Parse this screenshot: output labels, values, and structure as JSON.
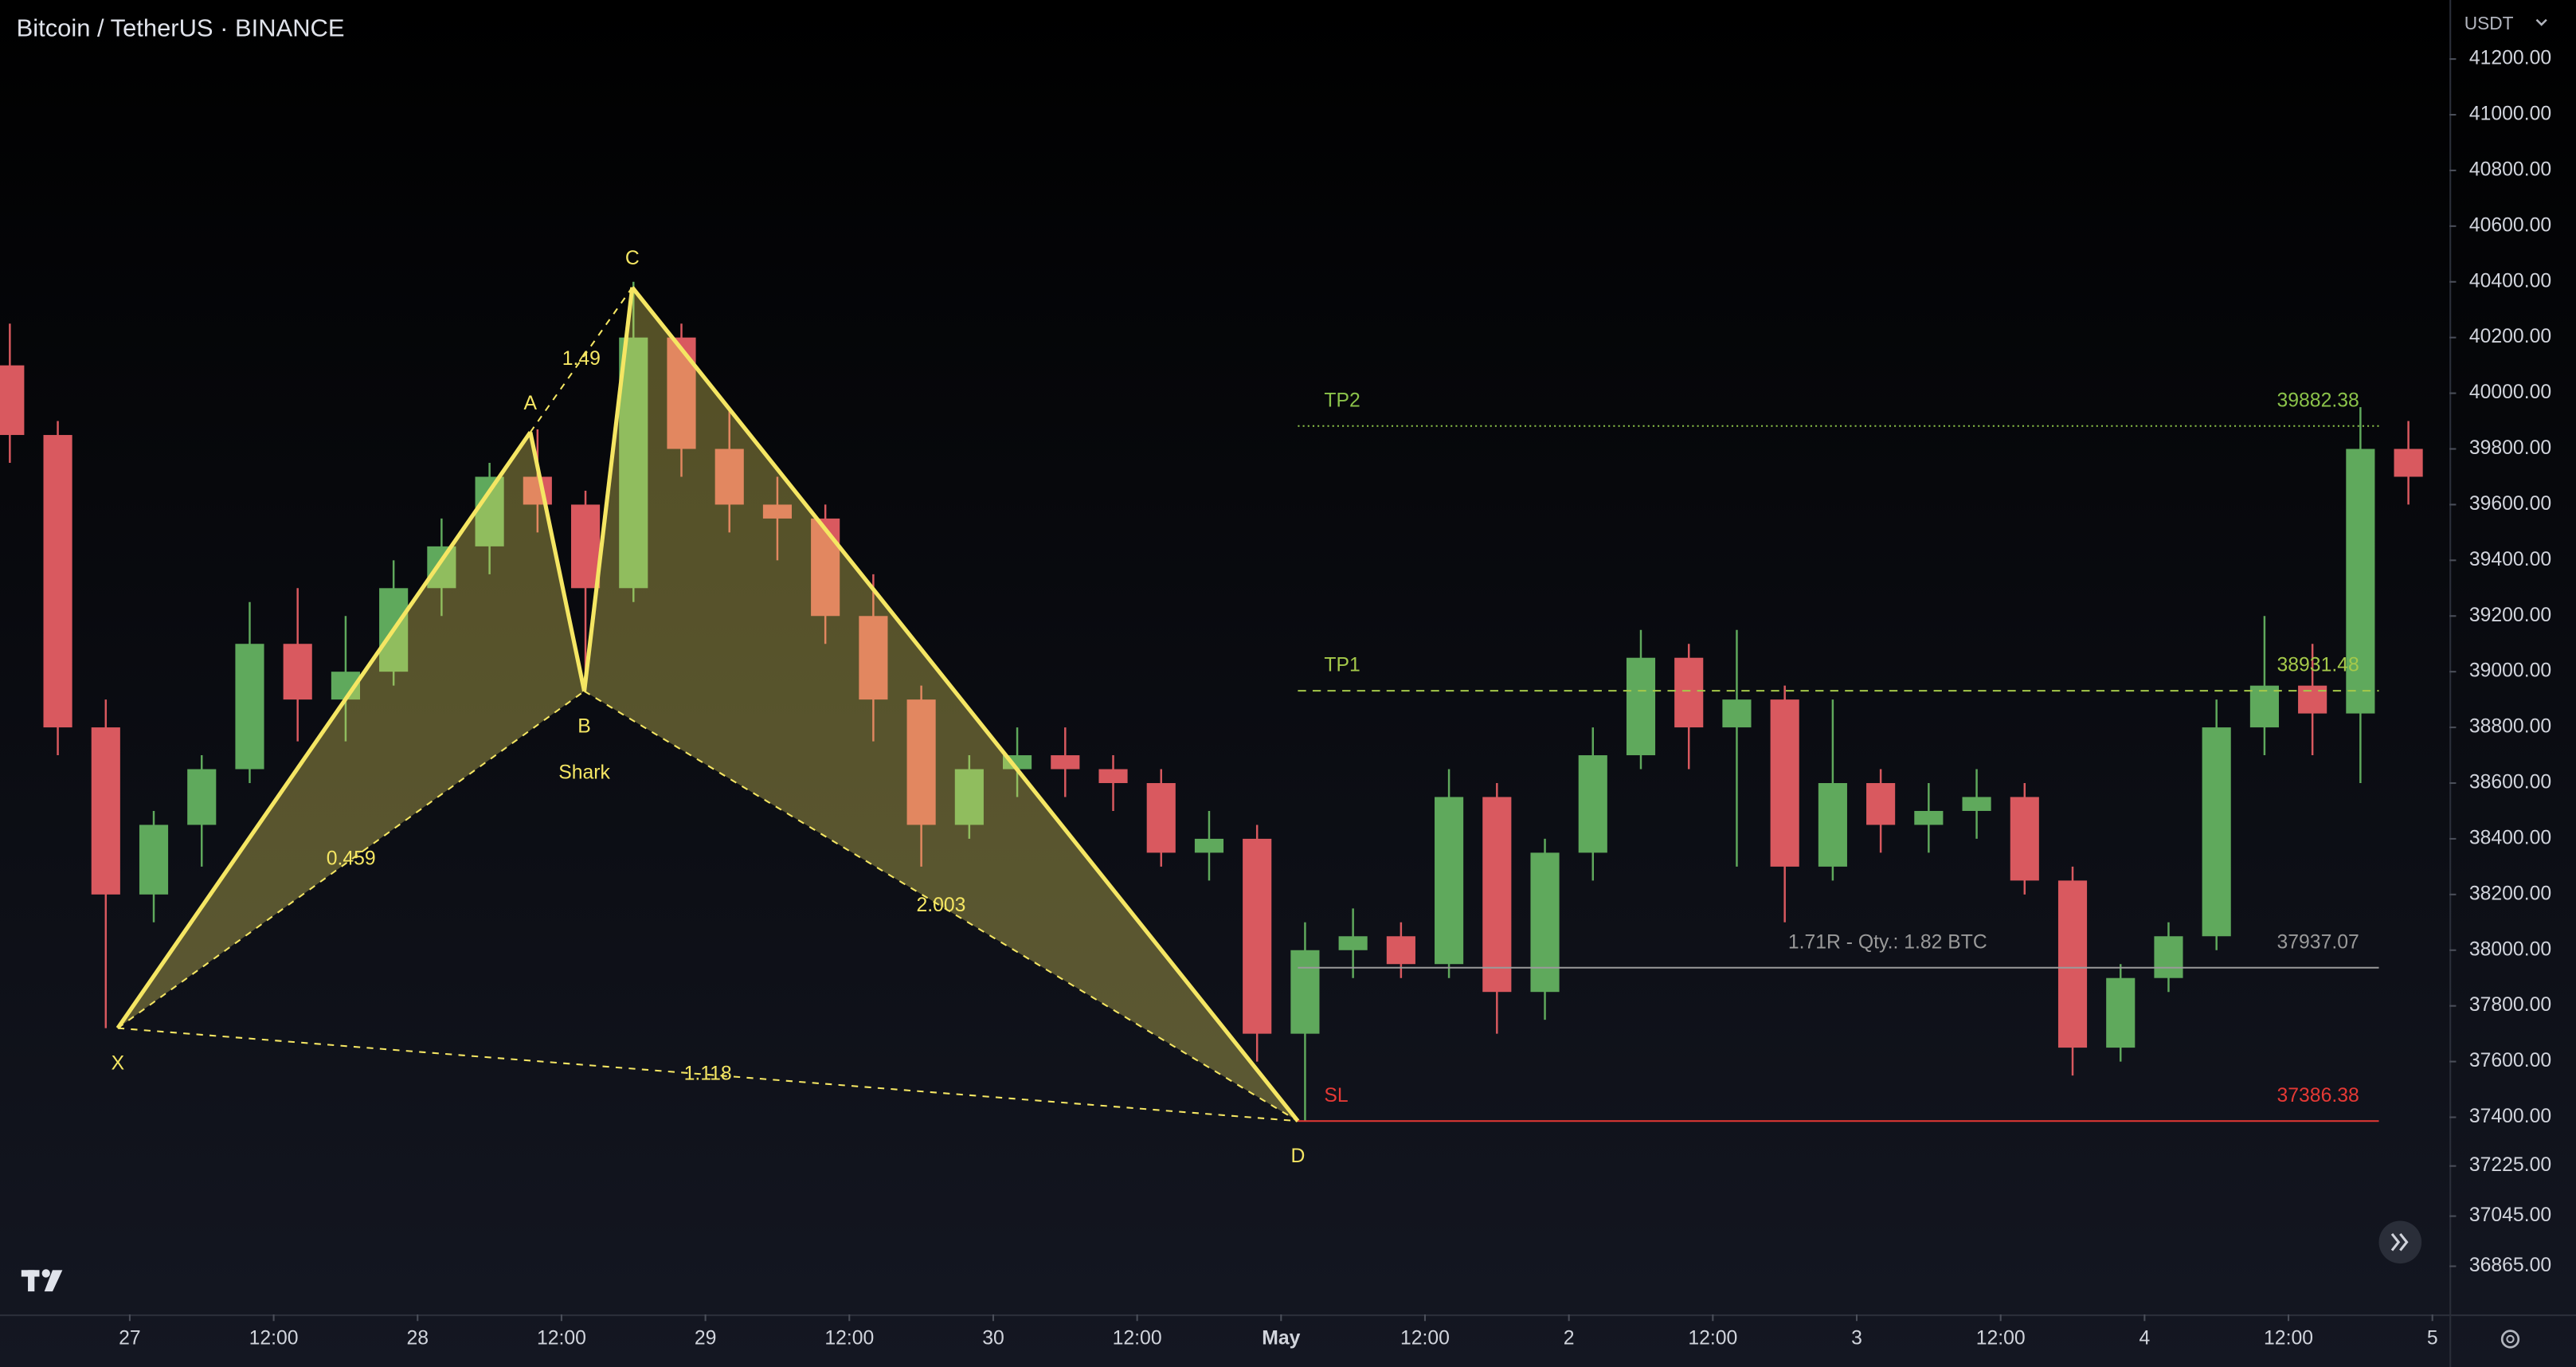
{
  "chart_data": {
    "type": "candlestick",
    "title": "Bitcoin / TetherUS · BINANCE",
    "currency": "USDT",
    "up_color": "#5fa95c",
    "down_color": "#d9595f",
    "x": [
      14,
      18,
      22,
      26,
      30,
      34,
      38,
      42,
      46,
      50,
      54,
      58,
      62,
      66,
      70,
      74,
      78,
      82,
      86,
      90,
      94,
      98,
      102,
      106,
      110,
      114,
      118,
      122,
      126,
      130,
      134,
      138,
      142,
      146,
      150,
      154,
      158,
      162,
      166,
      170,
      174,
      178,
      182,
      186,
      190,
      194,
      198,
      202,
      206,
      210,
      214
    ],
    "open": [
      40100,
      39850,
      38800,
      38200,
      38450,
      38650,
      39100,
      38900,
      39000,
      39300,
      39450,
      39700,
      39600,
      39300,
      40200,
      39800,
      39600,
      39550,
      39200,
      38900,
      38450,
      38650,
      38700,
      38650,
      38600,
      38350,
      38400,
      37700,
      38000,
      38050,
      37950,
      38550,
      37850,
      38350,
      38700,
      39050,
      38800,
      38900,
      38300,
      38600,
      38450,
      38500,
      38550,
      38250,
      37650,
      37900,
      38050,
      38800,
      38950,
      38850,
      39800
    ],
    "high": [
      40250,
      39900,
      38900,
      38500,
      38700,
      39250,
      39300,
      39200,
      39400,
      39550,
      39750,
      39870,
      39650,
      40400,
      40250,
      39950,
      39700,
      39600,
      39350,
      38950,
      38700,
      38800,
      38800,
      38700,
      38650,
      38500,
      38450,
      38100,
      38150,
      38100,
      38650,
      38600,
      38400,
      38800,
      39150,
      39100,
      39150,
      38950,
      38900,
      38650,
      38600,
      38650,
      38600,
      38300,
      37950,
      38100,
      38900,
      39200,
      39100,
      39950,
      39900
    ],
    "low": [
      39750,
      38700,
      37720,
      38100,
      38300,
      38600,
      38750,
      38750,
      38950,
      39200,
      39350,
      39500,
      38950,
      39250,
      39700,
      39500,
      39400,
      39100,
      38750,
      38300,
      38400,
      38550,
      38550,
      38500,
      38300,
      38250,
      37600,
      37386,
      37900,
      37900,
      37900,
      37700,
      37750,
      38250,
      38650,
      38650,
      38300,
      38100,
      38250,
      38350,
      38350,
      38400,
      38200,
      37550,
      37600,
      37850,
      38000,
      38700,
      38700,
      38600,
      39600
    ],
    "close": [
      39850,
      38800,
      38200,
      38450,
      38650,
      39100,
      38900,
      39000,
      39300,
      39450,
      39700,
      39600,
      39300,
      40200,
      39800,
      39600,
      39550,
      39200,
      38900,
      38450,
      38650,
      38700,
      38650,
      38600,
      38350,
      38400,
      37700,
      38000,
      38050,
      37950,
      38550,
      37850,
      38350,
      38700,
      39050,
      38800,
      38900,
      38300,
      38600,
      38450,
      38500,
      38550,
      38250,
      37650,
      37900,
      38050,
      38800,
      38950,
      38850,
      39800,
      39700
    ],
    "xlim": [
      13.18,
      217.29
    ],
    "xticks": [
      {
        "value": 24,
        "label": "27"
      },
      {
        "value": 36,
        "label": "12:00"
      },
      {
        "value": 48,
        "label": "28"
      },
      {
        "value": 60,
        "label": "12:00"
      },
      {
        "value": 72,
        "label": "29"
      },
      {
        "value": 84,
        "label": "12:00"
      },
      {
        "value": 96,
        "label": "30"
      },
      {
        "value": 108,
        "label": "12:00"
      },
      {
        "value": 120,
        "label": "May"
      },
      {
        "value": 132,
        "label": "12:00"
      },
      {
        "value": 144,
        "label": "2"
      },
      {
        "value": 156,
        "label": "12:00"
      },
      {
        "value": 168,
        "label": "3"
      },
      {
        "value": 180,
        "label": "12:00"
      },
      {
        "value": 192,
        "label": "4"
      },
      {
        "value": 204,
        "label": "12:00"
      },
      {
        "value": 216,
        "label": "5"
      }
    ],
    "ylim": [
      36692,
      41412
    ],
    "yticks": [
      {
        "value": 41200,
        "label": "41200.00"
      },
      {
        "value": 41000,
        "label": "41000.00"
      },
      {
        "value": 40800,
        "label": "40800.00"
      },
      {
        "value": 40600,
        "label": "40600.00"
      },
      {
        "value": 40400,
        "label": "40400.00"
      },
      {
        "value": 40200,
        "label": "40200.00"
      },
      {
        "value": 40000,
        "label": "40000.00"
      },
      {
        "value": 39800,
        "label": "39800.00"
      },
      {
        "value": 39600,
        "label": "39600.00"
      },
      {
        "value": 39400,
        "label": "39400.00"
      },
      {
        "value": 39200,
        "label": "39200.00"
      },
      {
        "value": 39000,
        "label": "39000.00"
      },
      {
        "value": 38800,
        "label": "38800.00"
      },
      {
        "value": 38600,
        "label": "38600.00"
      },
      {
        "value": 38400,
        "label": "38400.00"
      },
      {
        "value": 38200,
        "label": "38200.00"
      },
      {
        "value": 38000,
        "label": "38000.00"
      },
      {
        "value": 37800,
        "label": "37800.00"
      },
      {
        "value": 37600,
        "label": "37600.00"
      },
      {
        "value": 37400,
        "label": "37400.00"
      },
      {
        "value": 37225,
        "label": "37225.00"
      },
      {
        "value": 37045,
        "label": "37045.00"
      },
      {
        "value": 36865,
        "label": "36865.00"
      }
    ],
    "pattern": {
      "name": "Shark",
      "color": "#f5e663",
      "points": [
        {
          "label": "X",
          "x": 23,
          "price": 37720
        },
        {
          "label": "A",
          "x": 57.4,
          "price": 39860
        },
        {
          "label": "B",
          "x": 61.9,
          "price": 38930
        },
        {
          "label": "C",
          "x": 65.9,
          "price": 40380
        },
        {
          "label": "D",
          "x": 121.4,
          "price": 37386.38
        }
      ],
      "ratios": [
        {
          "label": 0.459,
          "from": 0,
          "to": 2
        },
        {
          "label": 1.49,
          "from": 1,
          "to": 3
        },
        {
          "label": 2.003,
          "from": 2,
          "to": 4
        },
        {
          "label": 1.118,
          "from": 0,
          "to": 4
        }
      ]
    },
    "levels": [
      {
        "name": "TP2",
        "value": 39882.38,
        "color": "#8bc34a",
        "style": "dotted"
      },
      {
        "name": "TP1",
        "value": 38931.48,
        "color": "#a5c94a",
        "style": "dashed"
      },
      {
        "name": "1.71R - Qty.: 1.82 BTC",
        "value": 37937.07,
        "color": "#9a9a9a",
        "style": "solid"
      },
      {
        "name": "SL",
        "value": 37386.38,
        "color": "#e53935",
        "style": "solid"
      }
    ]
  }
}
